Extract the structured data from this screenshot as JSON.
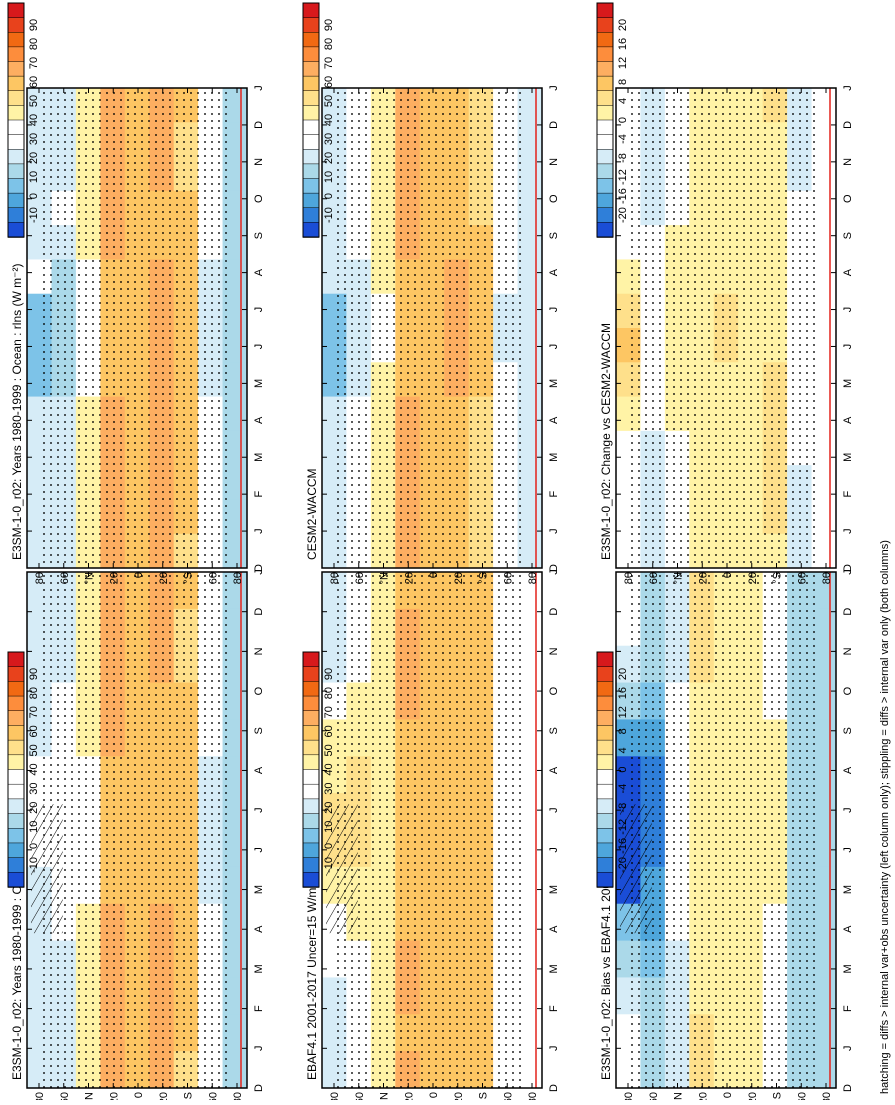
{
  "footnote": "hatching = diffs > internal var+obs uncertainty (left column only); stippling = diffs > internal var only (both columns)",
  "palette": {
    "abs": [
      "#d7191c",
      "#e8421c",
      "#f16913",
      "#fd8d3c",
      "#fdae61",
      "#fdc663",
      "#fee08b",
      "#fff3a6",
      "#ffffff",
      "#ffffff",
      "#d6ecf7",
      "#abd9e9",
      "#7dc3e8",
      "#4ea6dc",
      "#2f7fd9",
      "#1a4dd6"
    ],
    "diff": [
      "#d7191c",
      "#e8421c",
      "#f16913",
      "#fd8d3c",
      "#fdae61",
      "#fdc663",
      "#fee08b",
      "#fff3a6",
      "#ffffff",
      "#ffffff",
      "#d6ecf7",
      "#abd9e9",
      "#7dc3e8",
      "#4ea6dc",
      "#2f7fd9",
      "#1a4dd6"
    ]
  },
  "colorbars": [
    {
      "labels": [
        "90",
        "80",
        "70",
        "60",
        "50",
        "40",
        "30",
        "20",
        "10",
        "0",
        "-10"
      ]
    },
    {
      "labels": [
        "90",
        "80",
        "70",
        "60",
        "50",
        "40",
        "30",
        "20",
        "10",
        "0",
        "-10"
      ]
    },
    {
      "labels": [
        "20",
        "16",
        "12",
        "8",
        "4",
        "0",
        "-4",
        "-8",
        "-12",
        "-16",
        "-20"
      ]
    },
    {
      "labels": [
        "90",
        "80",
        "70",
        "60",
        "50",
        "40",
        "30",
        "20",
        "10",
        "0",
        "-10"
      ]
    },
    {
      "labels": [
        "90",
        "80",
        "70",
        "60",
        "50",
        "40",
        "30",
        "20",
        "10",
        "0",
        "-10"
      ]
    },
    {
      "labels": [
        "20",
        "16",
        "12",
        "8",
        "4",
        "0",
        "-4",
        "-8",
        "-12",
        "-16",
        "-20"
      ]
    }
  ],
  "chart_data": [
    {
      "type": "heatmap",
      "title": "E3SM-1-0_r02: Years 1980-1999 : Ocean : rlns (W m⁻²)",
      "x": [
        "D",
        "J",
        "F",
        "M",
        "A",
        "M",
        "J",
        "J",
        "A",
        "S",
        "O",
        "N",
        "D",
        "J"
      ],
      "y_ticks": [
        "80",
        "60",
        "°N",
        "20",
        "0",
        "20",
        "°S",
        "60",
        "80"
      ],
      "latitude_bands": [
        "80N",
        "60N",
        "40N",
        "20N",
        "0",
        "20S",
        "40S",
        "60S",
        "80S"
      ],
      "z": [
        [
          22,
          22,
          22,
          24,
          26,
          28,
          30,
          28,
          26,
          24,
          22,
          22,
          22,
          22
        ],
        [
          26,
          26,
          26,
          28,
          30,
          32,
          34,
          32,
          30,
          28,
          26,
          26,
          26,
          26
        ],
        [
          40,
          40,
          40,
          40,
          40,
          38,
          36,
          36,
          38,
          40,
          40,
          40,
          40,
          40
        ],
        [
          62,
          64,
          64,
          62,
          60,
          58,
          56,
          56,
          58,
          60,
          62,
          62,
          62,
          64
        ],
        [
          58,
          58,
          56,
          56,
          56,
          56,
          56,
          56,
          56,
          56,
          56,
          56,
          58,
          58
        ],
        [
          60,
          60,
          60,
          58,
          58,
          56,
          56,
          56,
          58,
          60,
          60,
          60,
          60,
          60
        ],
        [
          54,
          52,
          52,
          54,
          56,
          58,
          58,
          58,
          58,
          56,
          54,
          54,
          54,
          52
        ],
        [
          30,
          30,
          30,
          28,
          28,
          26,
          24,
          24,
          26,
          28,
          28,
          30,
          30,
          30
        ],
        [
          20,
          20,
          20,
          20,
          20,
          20,
          20,
          20,
          20,
          20,
          20,
          20,
          20,
          20
        ]
      ],
      "zmin": -10,
      "zmax": 90,
      "colorbar": [
        "90",
        "80",
        "70",
        "60",
        "50",
        "40",
        "30",
        "20",
        "10",
        "0",
        "-10"
      ]
    },
    {
      "type": "heatmap",
      "title": "EBAF4.1 2001-2017 Uncer=15 W/m2",
      "x": [
        "D",
        "J",
        "F",
        "M",
        "A",
        "M",
        "J",
        "J",
        "A",
        "S",
        "O",
        "N",
        "D",
        "J"
      ],
      "y_ticks": [
        "80",
        "60",
        "°N",
        "20",
        "0",
        "20",
        "°S",
        "60",
        "80"
      ],
      "latitude_bands": [
        "80N",
        "60N",
        "40N",
        "20N",
        "0",
        "20S",
        "40S",
        "60S",
        "80S"
      ],
      "z": [
        [
          24,
          24,
          24,
          30,
          40,
          46,
          52,
          50,
          44,
          36,
          30,
          26,
          24,
          24
        ],
        [
          34,
          34,
          36,
          40,
          44,
          48,
          50,
          48,
          46,
          42,
          38,
          36,
          34,
          34
        ],
        [
          46,
          46,
          46,
          44,
          44,
          42,
          40,
          40,
          42,
          44,
          46,
          46,
          46,
          46
        ],
        [
          58,
          60,
          60,
          60,
          58,
          56,
          56,
          56,
          58,
          58,
          60,
          60,
          58,
          60
        ],
        [
          56,
          56,
          54,
          54,
          54,
          54,
          54,
          54,
          54,
          54,
          54,
          56,
          56,
          56
        ],
        [
          58,
          58,
          58,
          56,
          56,
          56,
          56,
          56,
          56,
          58,
          58,
          58,
          58,
          58
        ],
        [
          56,
          56,
          56,
          56,
          56,
          58,
          58,
          58,
          58,
          58,
          56,
          56,
          56,
          56
        ],
        [
          38,
          38,
          38,
          36,
          36,
          36,
          34,
          34,
          36,
          36,
          38,
          38,
          38,
          38
        ],
        [
          30,
          30,
          30,
          30,
          30,
          30,
          30,
          30,
          30,
          30,
          30,
          30,
          30,
          30
        ]
      ],
      "zmin": -10,
      "zmax": 90,
      "colorbar": [
        "90",
        "80",
        "70",
        "60",
        "50",
        "40",
        "30",
        "20",
        "10",
        "0",
        "-10"
      ]
    },
    {
      "type": "heatmap",
      "title": "E3SM-1-0_r02: Bias vs EBAF4.1 2001-2017",
      "x": [
        "D",
        "J",
        "F",
        "M",
        "A",
        "M",
        "J",
        "J",
        "A",
        "S",
        "O",
        "N",
        "D",
        "J"
      ],
      "y_ticks": [
        "80",
        "60",
        "°N",
        "20",
        "0",
        "20",
        "°S",
        "60",
        "80"
      ],
      "latitude_bands": [
        "80N",
        "60N",
        "40N",
        "20N",
        "0",
        "20S",
        "40S",
        "60S",
        "80S"
      ],
      "z": [
        [
          -4,
          -4,
          -6,
          -8,
          -14,
          -18,
          -20,
          -20,
          -18,
          -12,
          -8,
          -6,
          -4,
          -4
        ],
        [
          -8,
          -8,
          -10,
          -12,
          -14,
          -16,
          -16,
          -16,
          -14,
          -14,
          -12,
          -10,
          -8,
          -8
        ],
        [
          -6,
          -6,
          -6,
          -4,
          -4,
          -4,
          -4,
          -4,
          -4,
          -4,
          -6,
          -6,
          -6,
          -6
        ],
        [
          4,
          4,
          4,
          2,
          2,
          2,
          0,
          0,
          0,
          2,
          2,
          2,
          4,
          4
        ],
        [
          2,
          2,
          2,
          2,
          2,
          2,
          2,
          2,
          2,
          2,
          2,
          0,
          2,
          2
        ],
        [
          2,
          2,
          2,
          2,
          2,
          0,
          0,
          0,
          2,
          2,
          2,
          2,
          2,
          2
        ],
        [
          -2,
          -4,
          -4,
          -2,
          0,
          0,
          0,
          0,
          0,
          -2,
          -2,
          -2,
          -2,
          -4
        ],
        [
          -8,
          -8,
          -8,
          -8,
          -8,
          -10,
          -10,
          -10,
          -10,
          -8,
          -8,
          -8,
          -8,
          -8
        ],
        [
          -10,
          -10,
          -10,
          -10,
          -10,
          -10,
          -10,
          -10,
          -10,
          -10,
          -10,
          -10,
          -10,
          -10
        ]
      ],
      "zmin": -20,
      "zmax": 20,
      "colorbar": [
        "20",
        "16",
        "12",
        "8",
        "4",
        "0",
        "-4",
        "-8",
        "-12",
        "-16",
        "-20"
      ]
    },
    {
      "type": "heatmap",
      "title": "E3SM-1-0_r02: Years 1980-1999 : Ocean : rlns (W m⁻²)",
      "x": [
        "D",
        "J",
        "F",
        "M",
        "A",
        "M",
        "J",
        "J",
        "A",
        "S",
        "O",
        "N",
        "D",
        "J"
      ],
      "y_ticks": [
        "80",
        "60",
        "°N",
        "20",
        "0",
        "20",
        "°S",
        "60",
        "80"
      ],
      "latitude_bands": [
        "80N",
        "60N",
        "40N",
        "20N",
        "0",
        "20S",
        "40S",
        "60S",
        "80S"
      ],
      "z": [
        [
          22,
          22,
          22,
          24,
          26,
          28,
          12,
          10,
          10,
          22,
          22,
          22,
          22,
          22
        ],
        [
          26,
          26,
          26,
          28,
          24,
          20,
          18,
          18,
          20,
          24,
          26,
          26,
          26,
          26
        ],
        [
          40,
          40,
          40,
          40,
          40,
          38,
          36,
          36,
          38,
          40,
          40,
          40,
          40,
          40
        ],
        [
          62,
          64,
          64,
          62,
          60,
          58,
          56,
          56,
          58,
          60,
          62,
          62,
          62,
          64
        ],
        [
          58,
          58,
          56,
          56,
          56,
          56,
          56,
          56,
          56,
          56,
          56,
          56,
          58,
          58
        ],
        [
          60,
          60,
          60,
          58,
          58,
          62,
          64,
          64,
          62,
          60,
          60,
          60,
          60,
          60
        ],
        [
          54,
          52,
          52,
          54,
          56,
          58,
          58,
          58,
          58,
          56,
          54,
          54,
          54,
          52
        ],
        [
          30,
          30,
          30,
          28,
          28,
          26,
          24,
          24,
          26,
          28,
          28,
          30,
          30,
          30
        ],
        [
          20,
          20,
          20,
          20,
          20,
          20,
          20,
          20,
          20,
          20,
          20,
          20,
          20,
          20
        ]
      ],
      "zmin": -10,
      "zmax": 90,
      "colorbar": [
        "90",
        "80",
        "70",
        "60",
        "50",
        "40",
        "30",
        "20",
        "10",
        "0",
        "-10"
      ]
    },
    {
      "type": "heatmap",
      "title": "CESM2-WACCM",
      "x": [
        "D",
        "J",
        "F",
        "M",
        "A",
        "M",
        "J",
        "J",
        "A",
        "S",
        "O",
        "N",
        "D",
        "J"
      ],
      "y_ticks": [
        "80",
        "60",
        "°N",
        "20",
        "0",
        "20",
        "°S",
        "60",
        "80"
      ],
      "latitude_bands": [
        "80N",
        "60N",
        "40N",
        "20N",
        "0",
        "20S",
        "40S",
        "60S",
        "80S"
      ],
      "z": [
        [
          24,
          24,
          24,
          26,
          26,
          26,
          14,
          10,
          12,
          22,
          24,
          24,
          24,
          24
        ],
        [
          30,
          30,
          30,
          30,
          28,
          24,
          22,
          22,
          24,
          28,
          30,
          30,
          30,
          30
        ],
        [
          42,
          42,
          42,
          42,
          42,
          40,
          38,
          38,
          40,
          42,
          42,
          42,
          42,
          42
        ],
        [
          62,
          64,
          64,
          62,
          60,
          58,
          58,
          58,
          58,
          60,
          62,
          62,
          62,
          64
        ],
        [
          56,
          56,
          56,
          56,
          56,
          56,
          56,
          56,
          56,
          56,
          56,
          56,
          56,
          56
        ],
        [
          58,
          58,
          58,
          58,
          58,
          60,
          62,
          62,
          60,
          58,
          58,
          58,
          58,
          58
        ],
        [
          50,
          50,
          50,
          52,
          54,
          56,
          56,
          56,
          54,
          52,
          50,
          50,
          50,
          50
        ],
        [
          30,
          30,
          30,
          30,
          28,
          28,
          26,
          26,
          28,
          28,
          30,
          30,
          30,
          30
        ],
        [
          22,
          22,
          22,
          22,
          22,
          22,
          22,
          22,
          22,
          22,
          22,
          22,
          22,
          22
        ]
      ],
      "zmin": -10,
      "zmax": 90,
      "colorbar": [
        "90",
        "80",
        "70",
        "60",
        "50",
        "40",
        "30",
        "20",
        "10",
        "0",
        "-10"
      ]
    },
    {
      "type": "heatmap",
      "title": "E3SM-1-0_r02: Change vs CESM2-WACCM",
      "x": [
        "D",
        "J",
        "F",
        "M",
        "A",
        "M",
        "J",
        "J",
        "A",
        "S",
        "O",
        "N",
        "D",
        "J"
      ],
      "y_ticks": [
        "80",
        "60",
        "°N",
        "20",
        "0",
        "20",
        "°S",
        "60",
        "80"
      ],
      "latitude_bands": [
        "80N",
        "60N",
        "40N",
        "20N",
        "0",
        "20S",
        "40S",
        "60S",
        "80S"
      ],
      "z": [
        [
          -4,
          -4,
          -4,
          -4,
          -2,
          0,
          4,
          6,
          4,
          0,
          -2,
          -4,
          -4,
          -4
        ],
        [
          -6,
          -6,
          -6,
          -6,
          -4,
          -2,
          -2,
          -2,
          -2,
          -4,
          -6,
          -6,
          -6,
          -6
        ],
        [
          -2,
          -2,
          -2,
          -2,
          0,
          0,
          0,
          0,
          0,
          0,
          -2,
          -2,
          -2,
          -2
        ],
        [
          2,
          2,
          0,
          2,
          2,
          2,
          0,
          0,
          2,
          2,
          2,
          0,
          2,
          2
        ],
        [
          2,
          2,
          2,
          0,
          2,
          2,
          4,
          4,
          2,
          2,
          2,
          2,
          2,
          2
        ],
        [
          2,
          2,
          2,
          0,
          2,
          2,
          2,
          2,
          2,
          2,
          2,
          2,
          2,
          2
        ],
        [
          4,
          2,
          2,
          2,
          2,
          2,
          2,
          2,
          4,
          4,
          4,
          4,
          4,
          2
        ],
        [
          -6,
          -6,
          -6,
          -4,
          -4,
          -4,
          -4,
          -4,
          -4,
          -4,
          -4,
          -6,
          -6,
          -6
        ],
        [
          -4,
          -4,
          -4,
          -4,
          -4,
          -4,
          -4,
          -4,
          -4,
          -4,
          -4,
          -4,
          -4,
          -4
        ]
      ],
      "zmin": -20,
      "zmax": 20,
      "colorbar": [
        "20",
        "16",
        "12",
        "8",
        "4",
        "0",
        "-4",
        "-8",
        "-12",
        "-16",
        "-20"
      ]
    }
  ]
}
